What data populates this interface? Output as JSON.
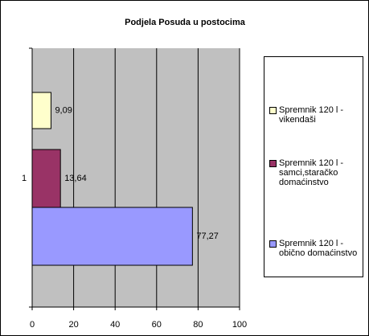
{
  "chart_data": {
    "type": "bar",
    "orientation": "horizontal",
    "title": "Podjela Posuda u postocima",
    "categories": [
      "1"
    ],
    "series": [
      {
        "name": "Spremnik 120 l - vikendaši",
        "color": "#ffffcc",
        "values": [
          9.09
        ],
        "value_labels": [
          "9,09"
        ]
      },
      {
        "name": "Spremnik 120 l - samci,staračko domaćinstvo",
        "color": "#993366",
        "values": [
          13.64
        ],
        "value_labels": [
          "13,64"
        ]
      },
      {
        "name": "Spremnik 120 l - obično domaćinstvo",
        "color": "#9999ff",
        "values": [
          77.27
        ],
        "value_labels": [
          "77,27"
        ]
      }
    ],
    "xlim": [
      0,
      100
    ],
    "xticks": [
      0,
      20,
      40,
      60,
      80,
      100
    ],
    "grid": true,
    "legend": "right"
  }
}
